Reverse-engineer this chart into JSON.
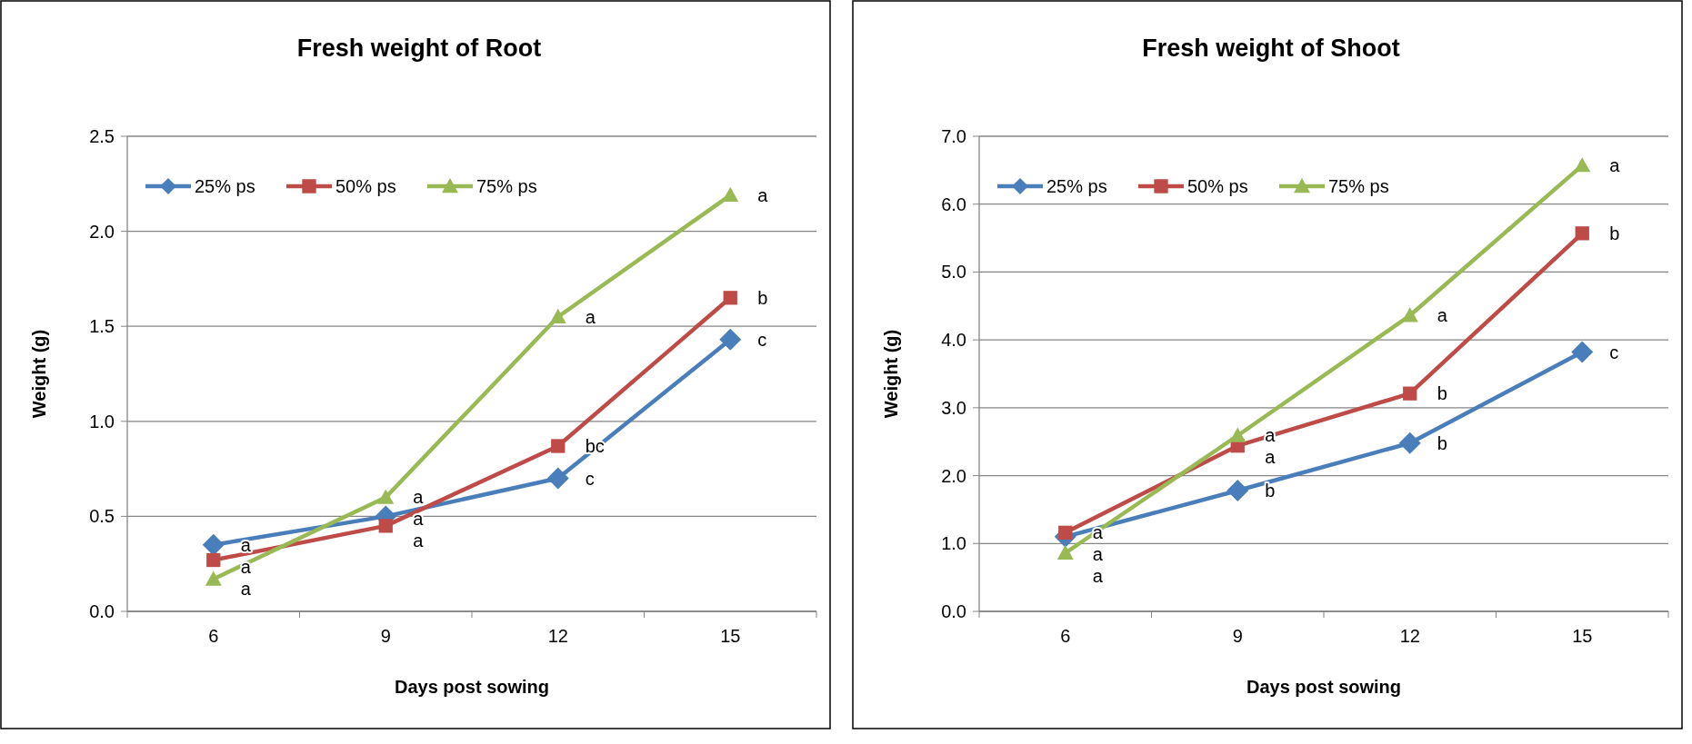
{
  "chart_data": [
    {
      "type": "line",
      "title": "Fresh weight of Root",
      "xlabel": "Days post sowing",
      "ylabel": "Weight (g)",
      "categories": [
        "6",
        "9",
        "12",
        "15"
      ],
      "ylim": [
        0,
        2.5
      ],
      "yticks": [
        {
          "value": 0,
          "label": "0.0"
        },
        {
          "value": 0.5,
          "label": "0.5"
        },
        {
          "value": 1,
          "label": "1.0"
        },
        {
          "value": 1.5,
          "label": "1.5"
        },
        {
          "value": 2,
          "label": "2.0"
        },
        {
          "value": 2.5,
          "label": "2.5"
        }
      ],
      "grid": "y",
      "legend": "top left",
      "series": [
        {
          "name": "25% ps",
          "color": "#4a7ebb",
          "marker": "diamond",
          "values": [
            0.35,
            0.5,
            0.7,
            1.43
          ]
        },
        {
          "name": "50% ps",
          "color": "#be4b48",
          "marker": "square",
          "values": [
            0.27,
            0.45,
            0.87,
            1.65
          ]
        },
        {
          "name": "75% ps",
          "color": "#98b954",
          "marker": "triangle",
          "values": [
            0.17,
            0.6,
            1.55,
            2.19
          ]
        }
      ],
      "annotations": [
        {
          "text": "a",
          "x": "6",
          "y": 0.35
        },
        {
          "text": "a",
          "x": "6",
          "y": 0.27
        },
        {
          "text": "a",
          "x": "6",
          "y": 0.17
        },
        {
          "text": "a",
          "x": "9",
          "y": 0.6
        },
        {
          "text": "a",
          "x": "9",
          "y": 0.5
        },
        {
          "text": "a",
          "x": "9",
          "y": 0.45
        },
        {
          "text": "a",
          "x": "12",
          "y": 1.55
        },
        {
          "text": "bc",
          "x": "12",
          "y": 0.87
        },
        {
          "text": "c",
          "x": "12",
          "y": 0.7
        },
        {
          "text": "a",
          "x": "15",
          "y": 2.19
        },
        {
          "text": "b",
          "x": "15",
          "y": 1.65
        },
        {
          "text": "c",
          "x": "15",
          "y": 1.43
        }
      ]
    },
    {
      "type": "line",
      "title": "Fresh weight of Shoot",
      "xlabel": "Days post sowing",
      "ylabel": "Weight (g)",
      "categories": [
        "6",
        "9",
        "12",
        "15"
      ],
      "ylim": [
        0,
        7
      ],
      "yticks": [
        {
          "value": 0,
          "label": "0.0"
        },
        {
          "value": 1,
          "label": "1.0"
        },
        {
          "value": 2,
          "label": "2.0"
        },
        {
          "value": 3,
          "label": "3.0"
        },
        {
          "value": 4,
          "label": "4.0"
        },
        {
          "value": 5,
          "label": "5.0"
        },
        {
          "value": 6,
          "label": "6.0"
        },
        {
          "value": 7,
          "label": "7.0"
        }
      ],
      "grid": "y",
      "legend": "top left",
      "series": [
        {
          "name": "25% ps",
          "color": "#4a7ebb",
          "marker": "diamond",
          "values": [
            1.1,
            1.78,
            2.48,
            3.82
          ]
        },
        {
          "name": "50% ps",
          "color": "#be4b48",
          "marker": "square",
          "values": [
            1.16,
            2.44,
            3.21,
            5.57
          ]
        },
        {
          "name": "75% ps",
          "color": "#98b954",
          "marker": "triangle",
          "values": [
            0.86,
            2.59,
            4.36,
            6.57
          ]
        }
      ],
      "annotations": [
        {
          "text": "a",
          "x": "6",
          "y": 1.16
        },
        {
          "text": "a",
          "x": "6",
          "y": 1.1
        },
        {
          "text": "a",
          "x": "6",
          "y": 0.86
        },
        {
          "text": "a",
          "x": "9",
          "y": 2.59
        },
        {
          "text": "a",
          "x": "9",
          "y": 2.44
        },
        {
          "text": "b",
          "x": "9",
          "y": 1.78
        },
        {
          "text": "a",
          "x": "12",
          "y": 4.36
        },
        {
          "text": "b",
          "x": "12",
          "y": 3.21
        },
        {
          "text": "b",
          "x": "12",
          "y": 2.48
        },
        {
          "text": "a",
          "x": "15",
          "y": 6.57
        },
        {
          "text": "b",
          "x": "15",
          "y": 5.57
        },
        {
          "text": "c",
          "x": "15",
          "y": 3.82
        }
      ]
    }
  ]
}
